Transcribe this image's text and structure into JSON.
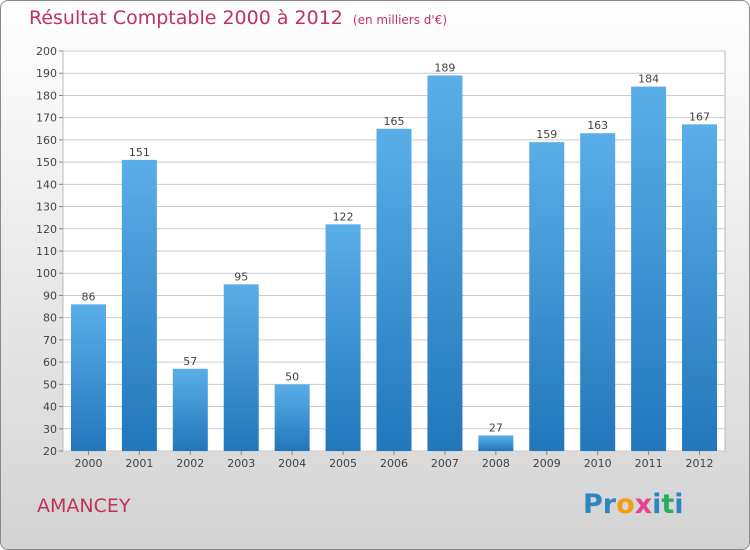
{
  "title": "Résultat Comptable 2000 à 2012",
  "subtitle": "(en milliers d'€)",
  "commune": "AMANCEY",
  "logo": {
    "text": "Proxiti",
    "letters": [
      "P",
      "r",
      "o",
      "x",
      "i",
      "t",
      "i"
    ],
    "colors": [
      "#2e86c1",
      "#2e86c1",
      "#f39c12",
      "#e84393",
      "#2e86c1",
      "#27ae60",
      "#2e86c1"
    ]
  },
  "colors": {
    "bar_top": "#5aaee8",
    "bar_bottom": "#2277bb",
    "title": "#c0325a",
    "grid": "#cccccc"
  },
  "chart_data": {
    "type": "bar",
    "categories": [
      "2000",
      "2001",
      "2002",
      "2003",
      "2004",
      "2005",
      "2006",
      "2007",
      "2008",
      "2009",
      "2010",
      "2011",
      "2012"
    ],
    "values": [
      86,
      151,
      57,
      95,
      50,
      122,
      165,
      189,
      27,
      159,
      163,
      184,
      167
    ],
    "title": "Résultat Comptable 2000 à 2012",
    "subtitle": "(en milliers d'€)",
    "ylim": [
      20,
      200
    ],
    "yticks": [
      20,
      30,
      40,
      50,
      60,
      70,
      80,
      90,
      100,
      110,
      120,
      130,
      140,
      150,
      160,
      170,
      180,
      190,
      200
    ],
    "grid": true
  }
}
